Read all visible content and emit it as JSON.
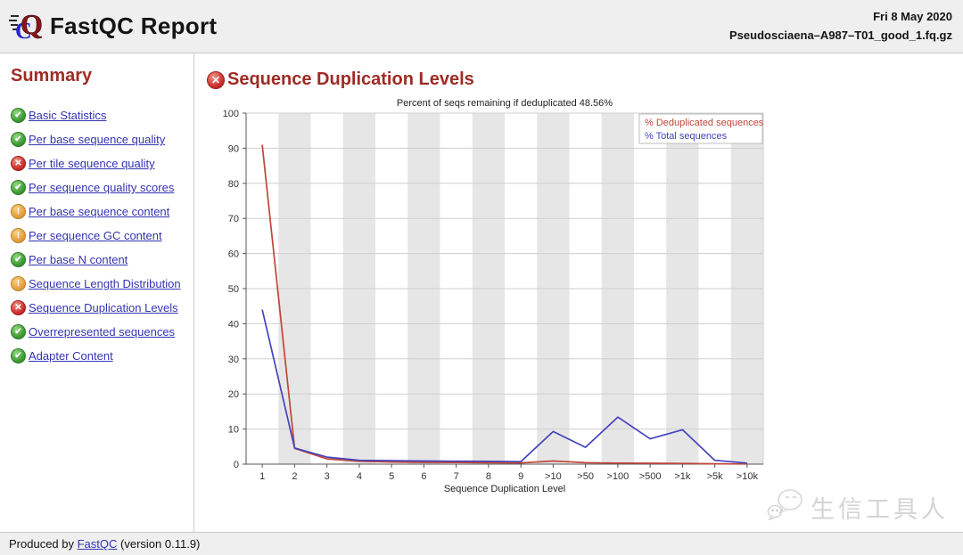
{
  "header": {
    "title": "FastQC Report",
    "date": "Fri 8 May 2020",
    "filename": "Pseudosciaena–A987–T01_good_1.fq.gz"
  },
  "sidebar": {
    "heading": "Summary",
    "items": [
      {
        "label": "Basic Statistics",
        "status": "pass"
      },
      {
        "label": "Per base sequence quality",
        "status": "pass"
      },
      {
        "label": "Per tile sequence quality",
        "status": "fail"
      },
      {
        "label": "Per sequence quality scores",
        "status": "pass"
      },
      {
        "label": "Per base sequence content",
        "status": "warn"
      },
      {
        "label": "Per sequence GC content",
        "status": "warn"
      },
      {
        "label": "Per base N content",
        "status": "pass"
      },
      {
        "label": "Sequence Length Distribution",
        "status": "warn"
      },
      {
        "label": "Sequence Duplication Levels",
        "status": "fail"
      },
      {
        "label": "Overrepresented sequences",
        "status": "pass"
      },
      {
        "label": "Adapter Content",
        "status": "pass"
      }
    ]
  },
  "main": {
    "section_title": "Sequence Duplication Levels",
    "section_status": "fail"
  },
  "chart_data": {
    "type": "line",
    "title": "Percent of seqs remaining if deduplicated 48.56%",
    "xlabel": "Sequence Duplication Level",
    "categories": [
      "1",
      "2",
      "3",
      "4",
      "5",
      "6",
      "7",
      "8",
      "9",
      ">10",
      ">50",
      ">100",
      ">500",
      ">1k",
      ">5k",
      ">10k"
    ],
    "series": [
      {
        "name": "% Deduplicated sequences",
        "color": "#c0453a",
        "values": [
          91,
          4.5,
          1.5,
          0.8,
          0.6,
          0.5,
          0.45,
          0.4,
          0.35,
          0.9,
          0.4,
          0.3,
          0.25,
          0.2,
          0.1,
          0.05
        ]
      },
      {
        "name": "% Total sequences",
        "color": "#4343bd",
        "values": [
          44,
          4.6,
          2.0,
          1.1,
          1.0,
          0.9,
          0.85,
          0.8,
          0.7,
          9.3,
          4.8,
          13.4,
          7.2,
          9.8,
          1.1,
          0.3
        ]
      }
    ],
    "ylim": [
      0,
      100
    ],
    "ytick_step": 10,
    "legend_position": "top-right",
    "grid": true,
    "band_color": "#e6e6e6",
    "gridline_color": "#cfcfcf"
  },
  "status_glyphs": {
    "pass": "✔",
    "warn": "!",
    "fail": "✕"
  },
  "colors": {
    "heading": "#9e2b25",
    "link": "#3434b4",
    "pass": "#3f9c35",
    "warn": "#e6a13c",
    "fail": "#cc2f2f"
  },
  "footer": {
    "text_prefix": "Produced by ",
    "link_label": "FastQC",
    "text_suffix": " (version 0.11.9)"
  },
  "watermark": {
    "text": "生信工具人"
  }
}
